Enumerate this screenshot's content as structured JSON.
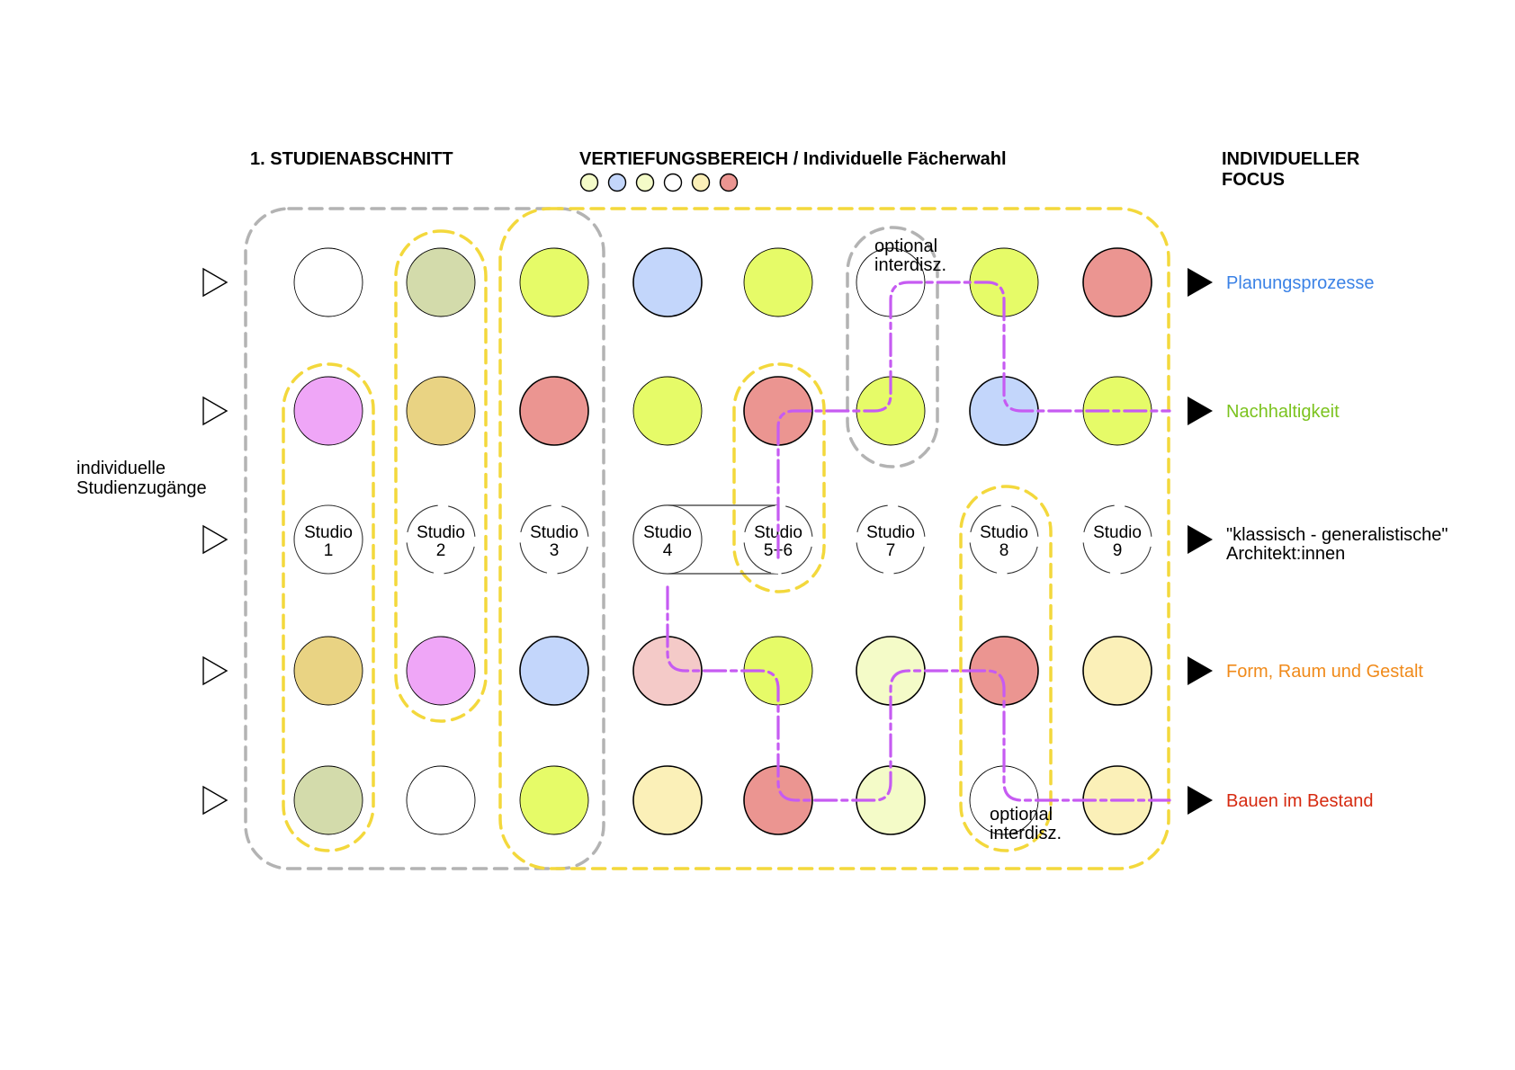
{
  "headers": {
    "left": "1. STUDIENABSCHNITT",
    "middle_bold": "VERTIEFUNGSBEREICH",
    "middle_sep": " / ",
    "middle_light": "Individuelle Fächerwahl",
    "right_line1": "INDIVIDUELLER",
    "right_line2": "FOCUS"
  },
  "legend_dots": [
    "#f4fbc8",
    "#c3d6fb",
    "#f4fbc8",
    "#ffffff",
    "#fbf0b8",
    "#eb9591"
  ],
  "entry_label": {
    "line1": "individuelle",
    "line2": "Studienzugänge"
  },
  "optional_label_top": {
    "line1": "optional",
    "line2": "interdisz."
  },
  "optional_label_bottom": {
    "line1": "optional",
    "line2": "interdisz."
  },
  "colors": {
    "white": "#ffffff",
    "olive": "#d3dbab",
    "lime": "#e6fb68",
    "lime_light": "#f4fbc8",
    "blue": "#c3d6fb",
    "red": "#eb9591",
    "pink": "#efa6f7",
    "ochre": "#e9d383",
    "pale_yellow": "#fbf0b8",
    "rose": "#f4cac8",
    "path": "#c65bf2",
    "yellow_outline": "#f3d83c",
    "grey_outline": "#b3b3b3"
  },
  "grid": {
    "rows": [
      {
        "id": "planung",
        "cells": [
          "white",
          "olive",
          "lime",
          "blue",
          "lime",
          "white",
          "lime",
          "red"
        ]
      },
      {
        "id": "nachhaltigkeit",
        "cells": [
          "pink",
          "ochre",
          "red",
          "lime",
          "red",
          "lime",
          "blue",
          "lime"
        ]
      },
      {
        "id": "studios",
        "cells": [
          "studio",
          "studio",
          "studio",
          "studio",
          "studio",
          "studio",
          "studio",
          "studio"
        ]
      },
      {
        "id": "form",
        "cells": [
          "ochre",
          "pink",
          "blue",
          "rose",
          "lime",
          "lime_light",
          "red",
          "pale_yellow"
        ]
      },
      {
        "id": "bestand",
        "cells": [
          "olive",
          "white",
          "lime",
          "pale_yellow",
          "red",
          "lime_light",
          "white",
          "pale_yellow"
        ]
      }
    ]
  },
  "studios": [
    {
      "line1": "Studio",
      "line2": "1"
    },
    {
      "line1": "Studio",
      "line2": "2"
    },
    {
      "line1": "Studio",
      "line2": "3"
    },
    {
      "line1": "Studio",
      "line2": "4"
    },
    {
      "line1": "Studio",
      "line2": "5+6"
    },
    {
      "line1": "Studio",
      "line2": "7"
    },
    {
      "line1": "Studio",
      "line2": "8"
    },
    {
      "line1": "Studio",
      "line2": "9"
    }
  ],
  "focus_rows": [
    {
      "line1": "Planungsprozesse",
      "line2": "",
      "color": "#3b82e6"
    },
    {
      "line1": "Nachhaltigkeit",
      "line2": "",
      "color": "#7cc31f"
    },
    {
      "line1": "\"klassisch - generalistische\"",
      "line2": "Architekt:innen",
      "color": "#000000"
    },
    {
      "line1": "Form, Raum und Gestalt",
      "line2": "",
      "color": "#f08a1a"
    },
    {
      "line1": "Bauen im Bestand",
      "line2": "",
      "color": "#d62a10"
    }
  ]
}
